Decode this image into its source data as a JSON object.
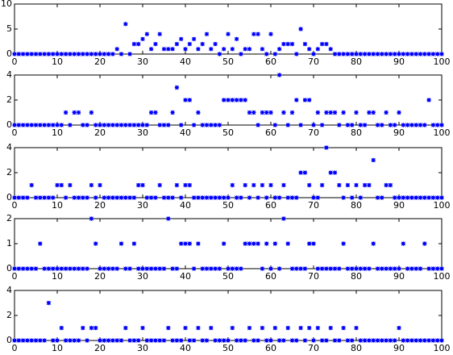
{
  "chart_data": [
    {
      "type": "scatter",
      "color": "#0000ff",
      "xlim": [
        0,
        100
      ],
      "xticks": [
        0,
        10,
        20,
        30,
        40,
        50,
        60,
        70,
        80,
        90,
        100
      ],
      "ylim": [
        0,
        10
      ],
      "yticks": [
        0,
        5,
        10
      ],
      "x": [
        0,
        1,
        2,
        3,
        4,
        5,
        6,
        7,
        8,
        9,
        10,
        11,
        12,
        13,
        14,
        15,
        16,
        17,
        18,
        19,
        20,
        21,
        22,
        23,
        24,
        25,
        26,
        27,
        28,
        29,
        30,
        31,
        32,
        33,
        34,
        35,
        36,
        37,
        38,
        39,
        40,
        41,
        42,
        43,
        44,
        45,
        46,
        47,
        48,
        49,
        50,
        51,
        52,
        53,
        54,
        55,
        56,
        57,
        58,
        59,
        60,
        61,
        62,
        63,
        64,
        65,
        66,
        67,
        68,
        69,
        70,
        71,
        72,
        73,
        74,
        75,
        76,
        77,
        78,
        79,
        80,
        81,
        82,
        83,
        84,
        85,
        86,
        87,
        88,
        89,
        90,
        91,
        92,
        93,
        94,
        95,
        96,
        97,
        98,
        99,
        100
      ],
      "values": [
        0,
        0,
        0,
        0,
        0,
        0,
        0,
        0,
        0,
        0,
        0,
        0,
        0,
        0,
        0,
        0,
        0,
        0,
        0,
        0,
        0,
        0,
        0,
        0,
        1,
        0,
        6,
        0,
        2,
        2,
        3,
        4,
        1,
        2,
        4,
        1,
        1,
        1,
        2,
        3,
        1,
        2,
        3,
        1,
        2,
        4,
        1,
        2,
        0,
        1,
        4,
        1,
        3,
        0,
        1,
        1,
        4,
        4,
        1,
        0,
        4,
        0,
        1,
        2,
        2,
        2,
        0,
        5,
        2,
        1,
        0,
        1,
        2,
        2,
        1,
        0,
        0,
        0,
        0,
        0,
        0,
        0,
        0,
        0,
        0,
        0,
        0,
        0,
        0,
        0,
        0,
        0,
        0,
        0,
        0,
        0,
        0,
        0,
        0,
        0,
        0
      ]
    },
    {
      "type": "scatter",
      "color": "#0000ff",
      "xlim": [
        0,
        100
      ],
      "xticks": [
        0,
        10,
        20,
        30,
        40,
        50,
        60,
        70,
        80,
        90,
        100
      ],
      "ylim": [
        0,
        4
      ],
      "yticks": [
        0,
        2,
        4
      ],
      "x": [
        0,
        1,
        2,
        3,
        4,
        5,
        6,
        7,
        8,
        9,
        10,
        11,
        12,
        13,
        14,
        15,
        16,
        17,
        18,
        19,
        20,
        21,
        22,
        23,
        24,
        25,
        26,
        27,
        28,
        29,
        30,
        31,
        32,
        33,
        34,
        35,
        36,
        37,
        38,
        39,
        40,
        41,
        42,
        43,
        44,
        45,
        46,
        47,
        48,
        49,
        50,
        51,
        52,
        53,
        54,
        55,
        56,
        57,
        58,
        59,
        60,
        61,
        62,
        63,
        64,
        65,
        66,
        67,
        68,
        69,
        70,
        71,
        72,
        73,
        74,
        75,
        76,
        77,
        78,
        79,
        80,
        81,
        82,
        83,
        84,
        85,
        86,
        87,
        88,
        89,
        90,
        91,
        92,
        93,
        94,
        95,
        96,
        97,
        98,
        99,
        100
      ],
      "values": [
        0,
        0,
        0,
        0,
        0,
        0,
        0,
        0,
        0,
        0,
        0,
        0,
        1,
        0,
        1,
        1,
        0,
        0,
        1,
        0,
        0,
        0,
        0,
        0,
        0,
        0,
        0,
        0,
        0,
        0,
        0,
        0,
        1,
        1,
        0,
        0,
        0,
        1,
        3,
        0,
        2,
        2,
        0,
        1,
        0,
        0,
        0,
        0,
        0,
        2,
        2,
        2,
        2,
        2,
        2,
        1,
        1,
        0,
        1,
        1,
        1,
        0,
        4,
        1,
        0,
        1,
        2,
        0,
        2,
        2,
        0,
        1,
        0,
        1,
        1,
        1,
        0,
        1,
        0,
        0,
        1,
        0,
        0,
        1,
        1,
        0,
        0,
        1,
        0,
        0,
        1,
        0,
        0,
        0,
        0,
        0,
        0,
        2,
        0,
        0,
        0
      ]
    },
    {
      "type": "scatter",
      "color": "#0000ff",
      "xlim": [
        0,
        100
      ],
      "xticks": [
        0,
        10,
        20,
        30,
        40,
        50,
        60,
        70,
        80,
        90,
        100
      ],
      "ylim": [
        0,
        4
      ],
      "yticks": [
        0,
        2,
        4
      ],
      "x": [
        0,
        1,
        2,
        3,
        4,
        5,
        6,
        7,
        8,
        9,
        10,
        11,
        12,
        13,
        14,
        15,
        16,
        17,
        18,
        19,
        20,
        21,
        22,
        23,
        24,
        25,
        26,
        27,
        28,
        29,
        30,
        31,
        32,
        33,
        34,
        35,
        36,
        37,
        38,
        39,
        40,
        41,
        42,
        43,
        44,
        45,
        46,
        47,
        48,
        49,
        50,
        51,
        52,
        53,
        54,
        55,
        56,
        57,
        58,
        59,
        60,
        61,
        62,
        63,
        64,
        65,
        66,
        67,
        68,
        69,
        70,
        71,
        72,
        73,
        74,
        75,
        76,
        77,
        78,
        79,
        80,
        81,
        82,
        83,
        84,
        85,
        86,
        87,
        88,
        89,
        90,
        91,
        92,
        93,
        94,
        95,
        96,
        97,
        98,
        99,
        100
      ],
      "values": [
        0,
        0,
        0,
        0,
        1,
        0,
        0,
        0,
        0,
        0,
        1,
        1,
        0,
        1,
        0,
        0,
        0,
        0,
        1,
        0,
        1,
        0,
        0,
        0,
        0,
        0,
        0,
        0,
        0,
        1,
        1,
        0,
        0,
        0,
        1,
        0,
        0,
        0,
        1,
        0,
        1,
        1,
        0,
        0,
        0,
        0,
        0,
        0,
        0,
        0,
        0,
        1,
        0,
        0,
        1,
        0,
        1,
        0,
        1,
        0,
        1,
        0,
        0,
        1,
        0,
        0,
        0,
        2,
        2,
        1,
        0,
        0,
        1,
        4,
        2,
        2,
        1,
        0,
        1,
        0,
        1,
        0,
        1,
        1,
        3,
        0,
        0,
        1,
        1,
        0,
        0,
        0,
        0,
        0,
        0,
        0,
        0,
        0,
        0,
        0,
        0
      ]
    },
    {
      "type": "scatter",
      "color": "#0000ff",
      "xlim": [
        0,
        100
      ],
      "xticks": [
        0,
        10,
        20,
        30,
        40,
        50,
        60,
        70,
        80,
        90,
        100
      ],
      "ylim": [
        0,
        2
      ],
      "yticks": [
        0,
        1,
        2
      ],
      "x": [
        0,
        1,
        2,
        3,
        4,
        5,
        6,
        7,
        8,
        9,
        10,
        11,
        12,
        13,
        14,
        15,
        16,
        17,
        18,
        19,
        20,
        21,
        22,
        23,
        24,
        25,
        26,
        27,
        28,
        29,
        30,
        31,
        32,
        33,
        34,
        35,
        36,
        37,
        38,
        39,
        40,
        41,
        42,
        43,
        44,
        45,
        46,
        47,
        48,
        49,
        50,
        51,
        52,
        53,
        54,
        55,
        56,
        57,
        58,
        59,
        60,
        61,
        62,
        63,
        64,
        65,
        66,
        67,
        68,
        69,
        70,
        71,
        72,
        73,
        74,
        75,
        76,
        77,
        78,
        79,
        80,
        81,
        82,
        83,
        84,
        85,
        86,
        87,
        88,
        89,
        90,
        91,
        92,
        93,
        94,
        95,
        96,
        97,
        98,
        99,
        100
      ],
      "values": [
        0,
        0,
        0,
        0,
        0,
        0,
        1,
        0,
        0,
        0,
        0,
        0,
        0,
        0,
        0,
        0,
        0,
        0,
        2,
        1,
        0,
        0,
        0,
        0,
        0,
        1,
        0,
        0,
        1,
        0,
        0,
        0,
        0,
        0,
        0,
        0,
        2,
        0,
        0,
        1,
        1,
        1,
        0,
        1,
        0,
        0,
        0,
        0,
        0,
        1,
        0,
        0,
        0,
        0,
        1,
        1,
        1,
        1,
        0,
        1,
        0,
        1,
        0,
        2,
        1,
        0,
        0,
        0,
        0,
        1,
        1,
        0,
        0,
        0,
        0,
        0,
        0,
        1,
        0,
        0,
        0,
        0,
        0,
        0,
        1,
        0,
        0,
        0,
        0,
        0,
        0,
        1,
        0,
        0,
        0,
        0,
        1,
        0,
        0,
        0,
        0
      ]
    },
    {
      "type": "scatter",
      "color": "#0000ff",
      "xlim": [
        0,
        100
      ],
      "xticks": [
        0,
        10,
        20,
        30,
        40,
        50,
        60,
        70,
        80,
        90,
        100
      ],
      "ylim": [
        0,
        4
      ],
      "yticks": [
        0,
        2,
        4
      ],
      "x": [
        0,
        1,
        2,
        3,
        4,
        5,
        6,
        7,
        8,
        9,
        10,
        11,
        12,
        13,
        14,
        15,
        16,
        17,
        18,
        19,
        20,
        21,
        22,
        23,
        24,
        25,
        26,
        27,
        28,
        29,
        30,
        31,
        32,
        33,
        34,
        35,
        36,
        37,
        38,
        39,
        40,
        41,
        42,
        43,
        44,
        45,
        46,
        47,
        48,
        49,
        50,
        51,
        52,
        53,
        54,
        55,
        56,
        57,
        58,
        59,
        60,
        61,
        62,
        63,
        64,
        65,
        66,
        67,
        68,
        69,
        70,
        71,
        72,
        73,
        74,
        75,
        76,
        77,
        78,
        79,
        80,
        81,
        82,
        83,
        84,
        85,
        86,
        87,
        88,
        89,
        90,
        91,
        92,
        93,
        94,
        95,
        96,
        97,
        98,
        99,
        100
      ],
      "values": [
        0,
        0,
        0,
        0,
        0,
        0,
        0,
        0,
        3,
        0,
        0,
        1,
        0,
        0,
        0,
        0,
        1,
        0,
        1,
        1,
        0,
        0,
        0,
        0,
        0,
        0,
        1,
        0,
        0,
        0,
        1,
        0,
        0,
        0,
        0,
        0,
        1,
        0,
        0,
        0,
        1,
        0,
        0,
        1,
        0,
        0,
        1,
        0,
        0,
        0,
        0,
        1,
        0,
        0,
        0,
        1,
        0,
        0,
        1,
        0,
        0,
        1,
        0,
        0,
        1,
        0,
        0,
        1,
        0,
        1,
        0,
        1,
        0,
        0,
        1,
        0,
        0,
        1,
        0,
        0,
        1,
        0,
        0,
        0,
        0,
        0,
        0,
        0,
        0,
        0,
        1,
        0,
        0,
        0,
        0,
        0,
        0,
        0,
        0,
        0,
        0
      ]
    }
  ]
}
